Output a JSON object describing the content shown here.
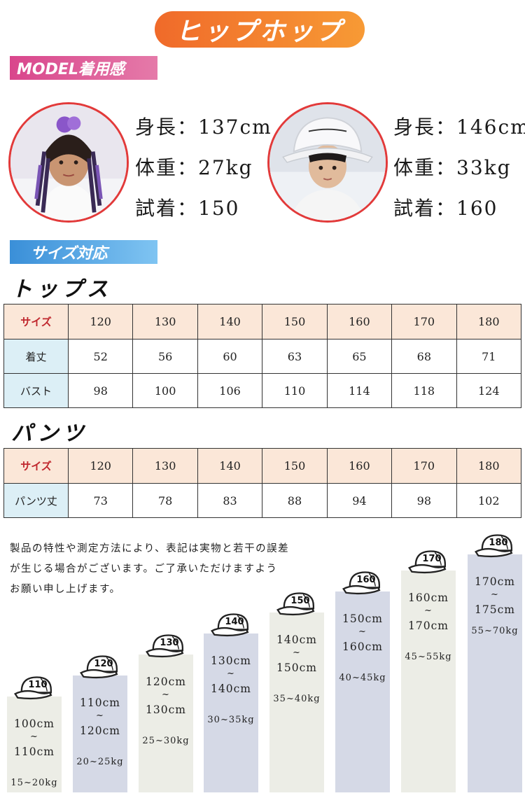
{
  "banner": {
    "title": "ヒップホップ"
  },
  "model_section": {
    "label": "MODEL着用感"
  },
  "models": [
    {
      "height": "身長：137cm",
      "weight": "体重：27kg",
      "trial": "試着：150"
    },
    {
      "height": "身長：146cm",
      "weight": "体重：33kg",
      "trial": "試着：160"
    }
  ],
  "size_section": {
    "label": "サイズ対応"
  },
  "tops": {
    "title": "トップス",
    "header_label": "サイズ",
    "sizes": [
      "120",
      "130",
      "140",
      "150",
      "160",
      "170",
      "180"
    ],
    "rows": [
      {
        "label": "着丈",
        "values": [
          "52",
          "56",
          "60",
          "63",
          "65",
          "68",
          "71"
        ]
      },
      {
        "label": "バスト",
        "values": [
          "98",
          "100",
          "106",
          "110",
          "114",
          "118",
          "124"
        ]
      }
    ]
  },
  "pants": {
    "title": "パンツ",
    "header_label": "サイズ",
    "sizes": [
      "120",
      "130",
      "140",
      "150",
      "160",
      "170",
      "180"
    ],
    "rows": [
      {
        "label": "パンツ丈",
        "values": [
          "73",
          "78",
          "83",
          "88",
          "94",
          "98",
          "102"
        ]
      }
    ]
  },
  "note": {
    "line1": "製品の特性や測定方法により、表記は実物と若干の誤差",
    "line2": "が生じる場合がございます。ご了承いただけますよう",
    "line3": "お願い申し上げます。"
  },
  "size_guide": [
    {
      "size": "110",
      "height_from": "100cm",
      "tilde": "~",
      "height_to": "110cm",
      "weight": "15~20kg"
    },
    {
      "size": "120",
      "height_from": "110cm",
      "tilde": "~",
      "height_to": "120cm",
      "weight": "20~25kg"
    },
    {
      "size": "130",
      "height_from": "120cm",
      "tilde": "~",
      "height_to": "130cm",
      "weight": "25~30kg"
    },
    {
      "size": "140",
      "height_from": "130cm",
      "tilde": "~",
      "height_to": "140cm",
      "weight": "30~35kg"
    },
    {
      "size": "150",
      "height_from": "140cm",
      "tilde": "~",
      "height_to": "150cm",
      "weight": "35~40kg"
    },
    {
      "size": "160",
      "height_from": "150cm",
      "tilde": "~",
      "height_to": "160cm",
      "weight": "40~45kg"
    },
    {
      "size": "170",
      "height_from": "160cm",
      "tilde": "~",
      "height_to": "170cm",
      "weight": "45~55kg"
    },
    {
      "size": "180",
      "height_from": "170cm",
      "tilde": "~",
      "height_to": "175cm",
      "weight": "55~70kg"
    }
  ],
  "colors": {
    "bar_light": "#ecede6",
    "bar_blue": "#d5d9e6",
    "banner": "#f27a2e",
    "border_red": "#e23a3a"
  }
}
